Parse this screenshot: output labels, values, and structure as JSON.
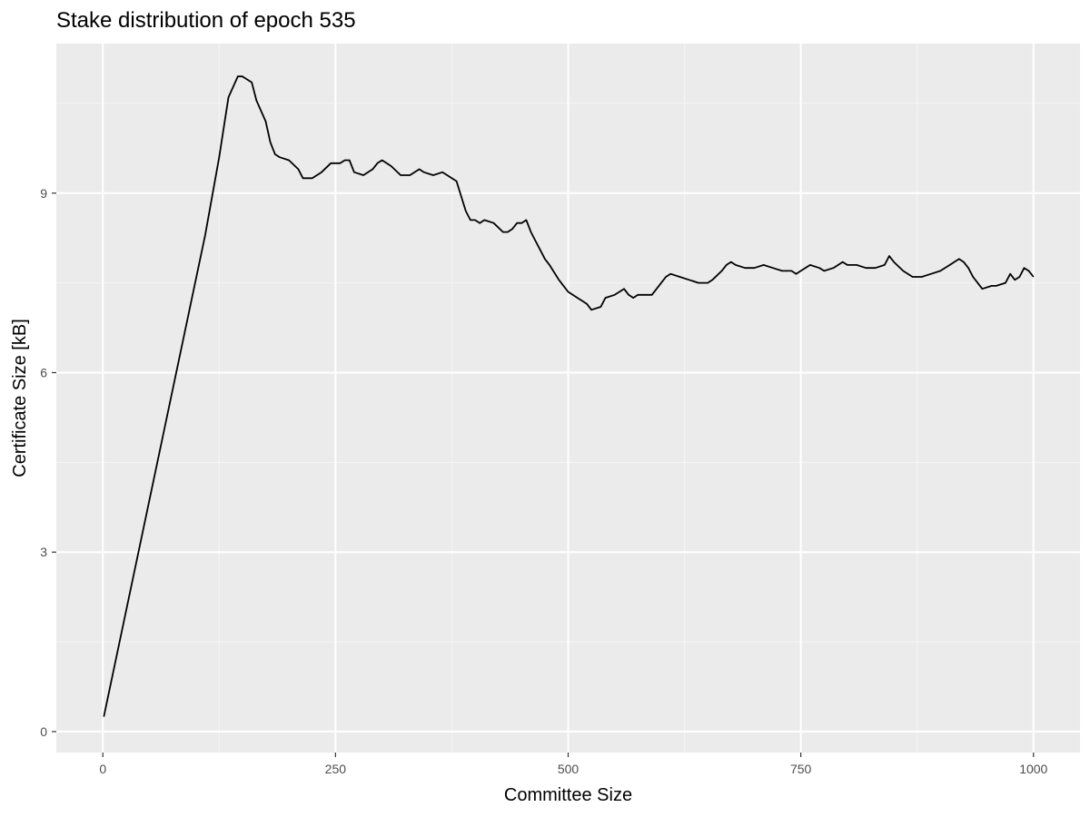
{
  "chart_data": {
    "type": "line",
    "title": "Stake distribution of epoch 535",
    "xlabel": "Committee Size",
    "ylabel": "Certificate Size [kB]",
    "xlim": [
      -50,
      1050
    ],
    "ylim": [
      -0.35,
      11.5
    ],
    "x_ticks": [
      0,
      250,
      500,
      750,
      1000
    ],
    "x_tick_labels": [
      "0",
      "250",
      "500",
      "750",
      "1000"
    ],
    "y_ticks": [
      0,
      3,
      6,
      9
    ],
    "y_tick_labels": [
      "0",
      "3",
      "6",
      "9"
    ],
    "x_minor_ticks": [
      125,
      375,
      625,
      875
    ],
    "y_minor_ticks": [
      1.5,
      4.5,
      7.5,
      10.5
    ],
    "grid": true,
    "legend": "none",
    "colors": {
      "panel_background": "#ebebeb",
      "grid_major": "#ffffff",
      "grid_minor": "#f5f5f5",
      "line": "#000000"
    },
    "series": [
      {
        "x": [
          1,
          110,
          125,
          135,
          145,
          150,
          160,
          165,
          175,
          180,
          185,
          190,
          200,
          210,
          215,
          220,
          225,
          230,
          235,
          245,
          255,
          260,
          265,
          270,
          280,
          290,
          295,
          300,
          305,
          310,
          320,
          330,
          340,
          345,
          355,
          365,
          370,
          375,
          380,
          385,
          390,
          395,
          400,
          405,
          410,
          420,
          430,
          435,
          440,
          445,
          450,
          455,
          460,
          465,
          470,
          475,
          480,
          490,
          500,
          505,
          510,
          515,
          520,
          525,
          535,
          540,
          550,
          555,
          560,
          565,
          570,
          575,
          580,
          590,
          600,
          605,
          610,
          620,
          630,
          640,
          650,
          655,
          665,
          670,
          675,
          680,
          690,
          700,
          710,
          720,
          730,
          740,
          745,
          750,
          760,
          770,
          775,
          785,
          795,
          800,
          810,
          820,
          830,
          840,
          845,
          850,
          860,
          870,
          880,
          890,
          900,
          910,
          920,
          925,
          930,
          935,
          940,
          945,
          955,
          960,
          970,
          975,
          980,
          985,
          990,
          995,
          1000
        ],
        "y": [
          0.25,
          8.3,
          9.6,
          10.6,
          10.95,
          10.95,
          10.85,
          10.55,
          10.2,
          9.85,
          9.65,
          9.6,
          9.55,
          9.4,
          9.25,
          9.25,
          9.25,
          9.3,
          9.35,
          9.5,
          9.5,
          9.55,
          9.55,
          9.35,
          9.3,
          9.4,
          9.5,
          9.55,
          9.5,
          9.45,
          9.3,
          9.3,
          9.4,
          9.35,
          9.3,
          9.35,
          9.3,
          9.25,
          9.2,
          8.95,
          8.7,
          8.55,
          8.55,
          8.5,
          8.55,
          8.5,
          8.35,
          8.35,
          8.4,
          8.5,
          8.5,
          8.55,
          8.35,
          8.2,
          8.05,
          7.9,
          7.8,
          7.55,
          7.35,
          7.3,
          7.25,
          7.2,
          7.15,
          7.05,
          7.1,
          7.25,
          7.3,
          7.35,
          7.4,
          7.3,
          7.25,
          7.3,
          7.3,
          7.3,
          7.5,
          7.6,
          7.65,
          7.6,
          7.55,
          7.5,
          7.5,
          7.55,
          7.7,
          7.8,
          7.85,
          7.8,
          7.75,
          7.75,
          7.8,
          7.75,
          7.7,
          7.7,
          7.65,
          7.7,
          7.8,
          7.75,
          7.7,
          7.75,
          7.85,
          7.8,
          7.8,
          7.75,
          7.75,
          7.8,
          7.95,
          7.85,
          7.7,
          7.6,
          7.6,
          7.65,
          7.7,
          7.8,
          7.9,
          7.85,
          7.75,
          7.6,
          7.5,
          7.4,
          7.45,
          7.45,
          7.5,
          7.65,
          7.55,
          7.6,
          7.75,
          7.7,
          7.6
        ]
      }
    ]
  }
}
